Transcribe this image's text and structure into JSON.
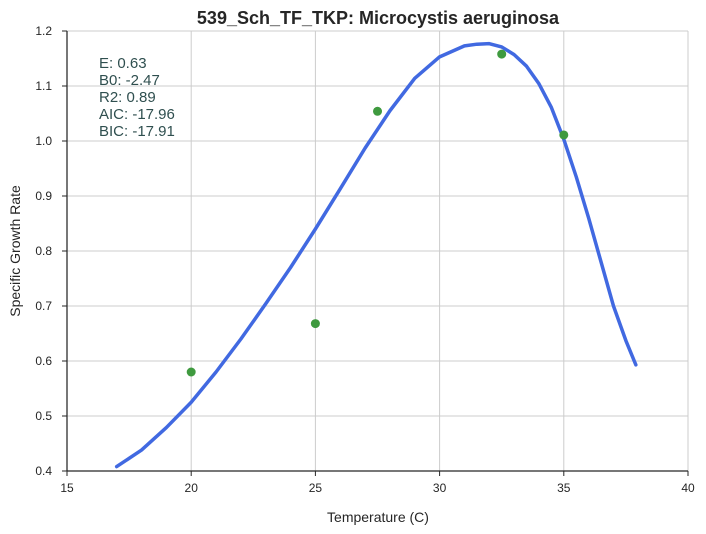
{
  "chart_data": {
    "type": "scatter",
    "title": "539_Sch_TF_TKP: Microcystis aeruginosa",
    "xlabel": "Temperature (C)",
    "ylabel": "Specific Growth Rate",
    "xlim": [
      15,
      40
    ],
    "ylim": [
      0.4,
      1.2
    ],
    "x_ticks": [
      15,
      20,
      25,
      30,
      35,
      40
    ],
    "y_ticks": [
      0.4,
      0.5,
      0.6,
      0.7,
      0.8,
      0.9,
      1.0,
      1.1,
      1.2
    ],
    "x_tick_labels": [
      "15",
      "20",
      "25",
      "30",
      "35",
      "40"
    ],
    "y_tick_labels": [
      "0.4",
      "0.5",
      "0.6",
      "0.7",
      "0.8",
      "0.9",
      "1.0",
      "1.1",
      "1.2"
    ],
    "grid": true,
    "annotations": [
      "E:  0.63",
      "B0:  -2.47",
      "R2:  0.89",
      "AIC: -17.96",
      "BIC: -17.91"
    ],
    "points": {
      "color": "#3f9a3f",
      "x": [
        20,
        25,
        27.5,
        32.5,
        35
      ],
      "y": [
        0.58,
        0.668,
        1.054,
        1.158,
        1.011
      ]
    },
    "fit_curve": {
      "color": "#4169e1",
      "x": [
        17,
        18,
        19,
        20,
        21,
        22,
        23,
        24,
        25,
        26,
        27,
        28,
        29,
        30,
        31,
        31.5,
        32,
        32.5,
        33,
        33.5,
        34,
        34.5,
        35,
        35.5,
        36,
        36.5,
        37,
        37.5,
        37.9
      ],
      "y": [
        0.408,
        0.438,
        0.479,
        0.525,
        0.58,
        0.64,
        0.704,
        0.77,
        0.84,
        0.913,
        0.987,
        1.055,
        1.114,
        1.153,
        1.173,
        1.176,
        1.177,
        1.171,
        1.157,
        1.136,
        1.104,
        1.061,
        1.003,
        0.935,
        0.86,
        0.78,
        0.7,
        0.637,
        0.593
      ]
    }
  }
}
